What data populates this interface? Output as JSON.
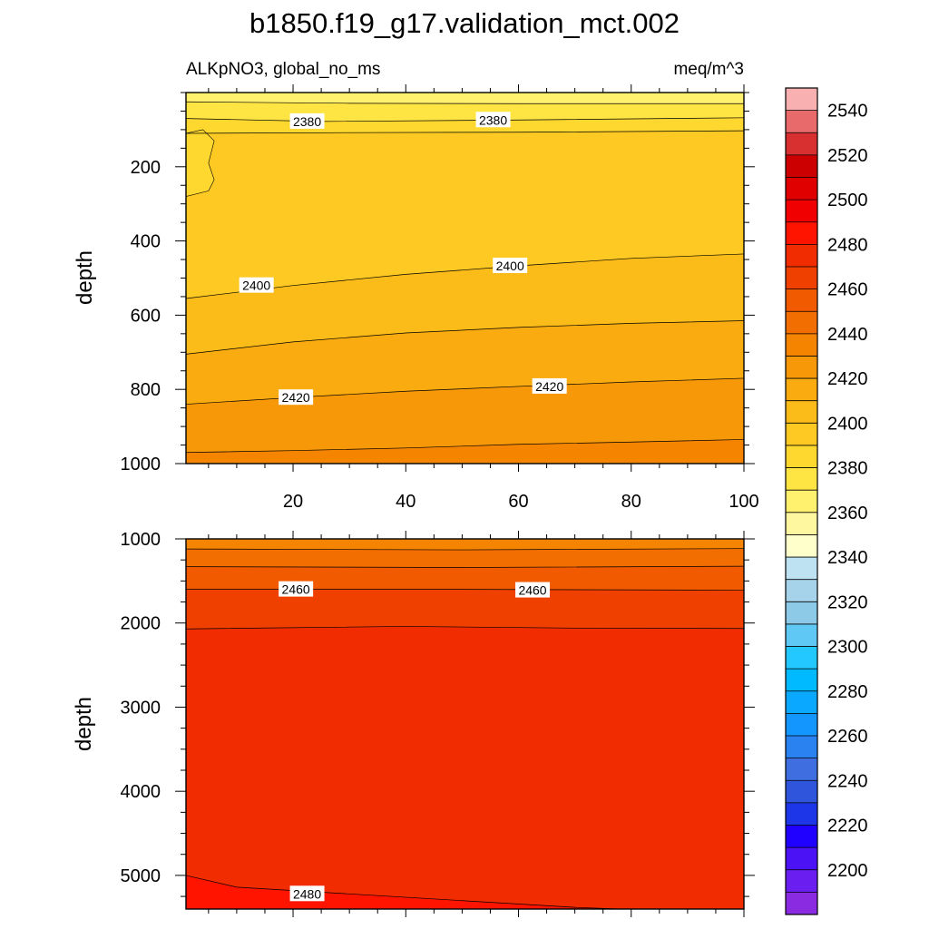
{
  "title": "b1850.f19_g17.validation_mct.002",
  "chart_data": {
    "type": "heatmap",
    "subtitle_left": "ALKpNO3, global_no_ms",
    "subtitle_right": "meq/m^3",
    "ylabel": "depth",
    "x_tick_labels": [
      "20",
      "40",
      "60",
      "80",
      "100"
    ],
    "x_ticks": [
      20,
      40,
      60,
      80,
      100
    ],
    "panels": [
      {
        "name": "upper",
        "ylim": [
          1000,
          0
        ],
        "xlim": [
          1,
          100
        ],
        "y_tick_labels": [
          "200",
          "400",
          "600",
          "800",
          "1000"
        ],
        "y_ticks": [
          200,
          400,
          600,
          800,
          1000
        ],
        "contours": [
          {
            "value": 2370,
            "points": [
              [
                1,
                25
              ],
              [
                30,
                29
              ],
              [
                60,
                30
              ],
              [
                80,
                30
              ],
              [
                100,
                30
              ]
            ]
          },
          {
            "value": 2380,
            "points": [
              [
                1,
                70
              ],
              [
                25,
                78
              ],
              [
                60,
                74
              ],
              [
                100,
                68
              ]
            ]
          },
          {
            "value": 2390,
            "points": [
              [
                1,
                110
              ],
              [
                30,
                108
              ],
              [
                60,
                107
              ],
              [
                100,
                103
              ]
            ]
          },
          {
            "value": 2400,
            "points": [
              [
                1,
                555
              ],
              [
                20,
                520
              ],
              [
                40,
                490
              ],
              [
                60,
                467
              ],
              [
                80,
                447
              ],
              [
                100,
                435
              ]
            ]
          },
          {
            "value": 2410,
            "points": [
              [
                1,
                705
              ],
              [
                20,
                672
              ],
              [
                40,
                648
              ],
              [
                60,
                633
              ],
              [
                80,
                622
              ],
              [
                100,
                615
              ]
            ]
          },
          {
            "value": 2420,
            "points": [
              [
                1,
                840
              ],
              [
                20,
                822
              ],
              [
                40,
                805
              ],
              [
                60,
                792
              ],
              [
                80,
                780
              ],
              [
                100,
                770
              ]
            ]
          },
          {
            "value": 2430,
            "points": [
              [
                1,
                970
              ],
              [
                20,
                965
              ],
              [
                40,
                958
              ],
              [
                60,
                948
              ],
              [
                80,
                942
              ],
              [
                100,
                935
              ]
            ]
          }
        ],
        "fresher_pocket": {
          "value": 2390,
          "points": [
            [
              1,
              110
            ],
            [
              4,
              100
            ],
            [
              6,
              130
            ],
            [
              5,
              190
            ],
            [
              6,
              235
            ],
            [
              5,
              265
            ],
            [
              1,
              280
            ]
          ]
        },
        "contour_labels": [
          {
            "text": "2380",
            "x": 22.5,
            "y": 78
          },
          {
            "text": "2380",
            "x": 55.5,
            "y": 74
          },
          {
            "text": "2400",
            "x": 13.5,
            "y": 520
          },
          {
            "text": "2400",
            "x": 58.5,
            "y": 467
          },
          {
            "text": "2420",
            "x": 20.5,
            "y": 822
          },
          {
            "text": "2420",
            "x": 65.5,
            "y": 792
          }
        ]
      },
      {
        "name": "lower",
        "ylim": [
          5400,
          1000
        ],
        "xlim": [
          1,
          100
        ],
        "y_tick_labels": [
          "1000",
          "2000",
          "3000",
          "4000",
          "5000"
        ],
        "y_ticks": [
          1000,
          2000,
          3000,
          4000,
          5000
        ],
        "contours": [
          {
            "value": 2440,
            "points": [
              [
                1,
                1120
              ],
              [
                50,
                1130
              ],
              [
                100,
                1115
              ]
            ]
          },
          {
            "value": 2450,
            "points": [
              [
                1,
                1330
              ],
              [
                50,
                1340
              ],
              [
                100,
                1325
              ]
            ]
          },
          {
            "value": 2460,
            "points": [
              [
                1,
                1600
              ],
              [
                50,
                1600
              ],
              [
                100,
                1610
              ]
            ]
          },
          {
            "value": 2470,
            "points": [
              [
                1,
                2070
              ],
              [
                40,
                2040
              ],
              [
                70,
                2060
              ],
              [
                100,
                2065
              ]
            ]
          },
          {
            "value": 2480,
            "points": [
              [
                1,
                5000
              ],
              [
                10,
                5140
              ],
              [
                30,
                5220
              ],
              [
                50,
                5300
              ],
              [
                70,
                5380
              ],
              [
                78,
                5400
              ]
            ]
          }
        ],
        "contour_labels": [
          {
            "text": "2460",
            "x": 20.5,
            "y": 1600
          },
          {
            "text": "2460",
            "x": 62.5,
            "y": 1610
          },
          {
            "text": "2480",
            "x": 22.5,
            "y": 5220
          }
        ]
      }
    ],
    "colorbar": {
      "labels": [
        "2200",
        "2220",
        "2240",
        "2260",
        "2280",
        "2300",
        "2320",
        "2340",
        "2360",
        "2380",
        "2400",
        "2420",
        "2440",
        "2460",
        "2480",
        "2500",
        "2520",
        "2540"
      ],
      "colors": [
        "#8a2be2",
        "#6a1ef0",
        "#4a12f4",
        "#2000ff",
        "#1c36e8",
        "#2e55dc",
        "#3e6ee0",
        "#2a82f0",
        "#1496ff",
        "#0aa8ff",
        "#00baff",
        "#22c8ff",
        "#60c8f4",
        "#8ccae8",
        "#a6d2ea",
        "#bee2f2",
        "#ffffcc",
        "#fff7a0",
        "#fff06e",
        "#fee544",
        "#fed82e",
        "#fdc922",
        "#fbbb18",
        "#f9ab10",
        "#f79808",
        "#f58400",
        "#f36e00",
        "#f25a00",
        "#f04000",
        "#f02c00",
        "#ff1400",
        "#f00000",
        "#e00000",
        "#cc0000",
        "#d83030",
        "#e86a6a",
        "#f8b0b0"
      ]
    }
  }
}
